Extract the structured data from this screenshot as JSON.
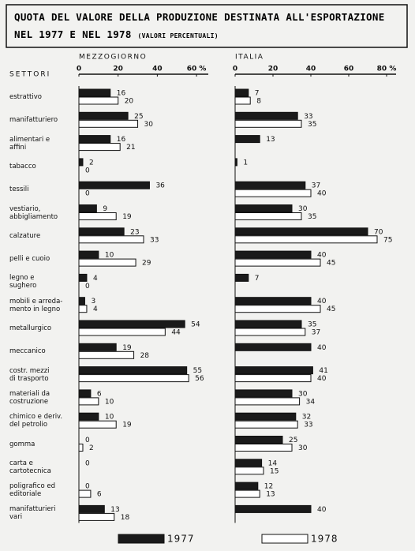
{
  "header": {
    "title_lines": [
      "QUOTA DEL VALORE DELLA PRODUZIONE DESTINATA ALL'ESPORTAZIONE",
      "NEL 1977 E NEL 1978"
    ],
    "subtitle": "(VALORI PERCENTUALI)",
    "row_header": "SETTORI"
  },
  "chart_data": [
    {
      "type": "bar",
      "orientation": "horizontal",
      "title": "MEZZOGIORNO",
      "categories": [
        "estrattivo",
        "manifatturiero",
        "alimentari e\naffini",
        "tabacco",
        "tessili",
        "vestiario,\nabbigliamento",
        "calzature",
        "pelli e cuoio",
        "legno e\nsughero",
        "mobili e arreda-\nmento in legno",
        "metallurgico",
        "meccanico",
        "costr. mezzi\ndi trasporto",
        "materiali da\ncostruzione",
        "chimico e deriv.\ndel petrolio",
        "gomma",
        "carta e\ncartotecnica",
        "poligrafico ed\neditoriale",
        "manifatturieri\nvari"
      ],
      "series": [
        {
          "name": "1977",
          "color": "#1a1a1a",
          "values": [
            16,
            25,
            16,
            2,
            36,
            9,
            23,
            10,
            4,
            3,
            54,
            19,
            55,
            6,
            10,
            0,
            0,
            0,
            13
          ]
        },
        {
          "name": "1978",
          "color": "#ffffff",
          "values": [
            20,
            30,
            21,
            0,
            0,
            19,
            33,
            29,
            0,
            4,
            44,
            28,
            56,
            10,
            19,
            2,
            null,
            6,
            18
          ]
        }
      ],
      "xlim": [
        0,
        66
      ],
      "xticks": [
        0,
        20,
        40,
        {
          "value": 60,
          "label": "60 %"
        }
      ]
    },
    {
      "type": "bar",
      "orientation": "horizontal",
      "title": "ITALIA",
      "series": [
        {
          "name": "1977",
          "color": "#1a1a1a",
          "values": [
            7,
            33,
            13,
            1,
            37,
            30,
            70,
            40,
            7,
            40,
            35,
            40,
            41,
            30,
            32,
            25,
            14,
            12,
            40
          ]
        },
        {
          "name": "1978",
          "color": "#ffffff",
          "values": [
            8,
            35,
            null,
            null,
            40,
            35,
            75,
            45,
            null,
            45,
            37,
            null,
            40,
            34,
            33,
            30,
            15,
            13,
            null
          ]
        }
      ],
      "xlim": [
        0,
        85
      ],
      "xticks": [
        0,
        20,
        40,
        60,
        {
          "value": 80,
          "label": "80 %"
        }
      ]
    }
  ]
}
